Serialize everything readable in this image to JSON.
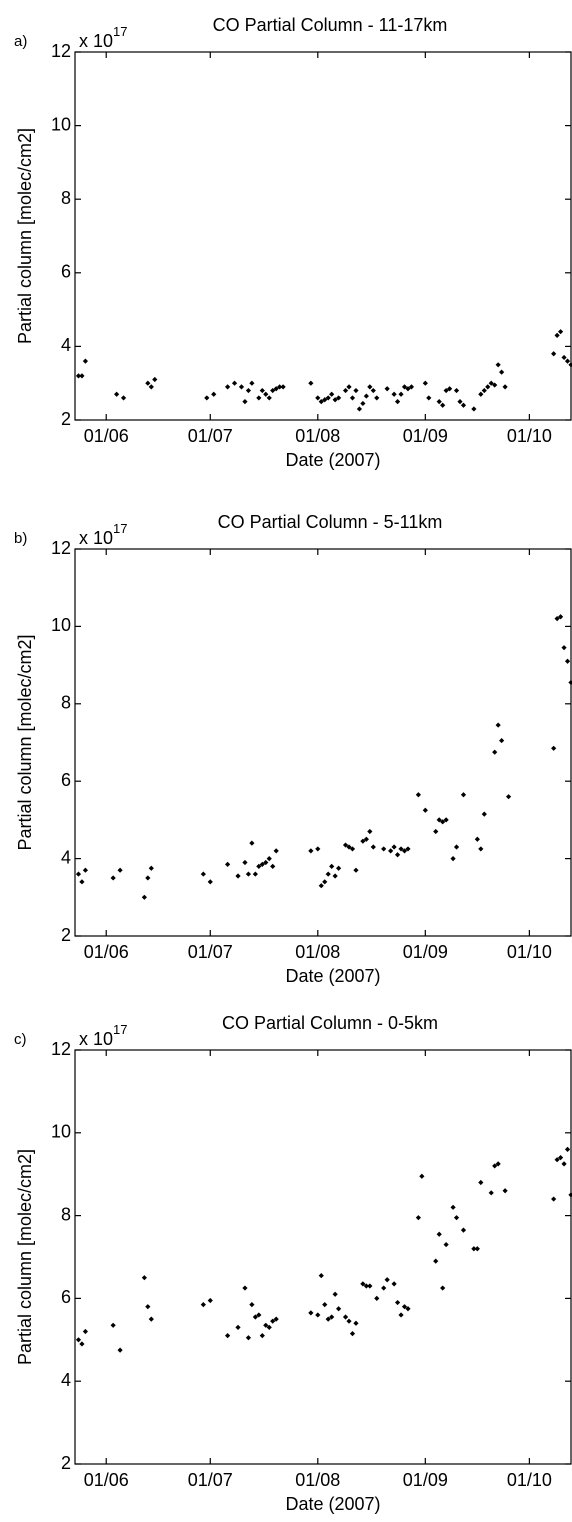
{
  "chart_data": [
    {
      "type": "scatter",
      "panel_label": "a)",
      "title": "CO Partial Column - 11-17km",
      "xlabel": "Date (2007)",
      "ylabel": "Partial column [molec/cm2]",
      "y_multiplier": {
        "base": "x 10",
        "exponent": "17"
      },
      "color": "#000000",
      "xlim": [
        "2007-05-23",
        "2007-10-13"
      ],
      "xticks": [
        {
          "value": "2007-06-01",
          "label": "01/06"
        },
        {
          "value": "2007-07-01",
          "label": "01/07"
        },
        {
          "value": "2007-08-01",
          "label": "01/08"
        },
        {
          "value": "2007-09-01",
          "label": "01/09"
        },
        {
          "value": "2007-10-01",
          "label": "01/10"
        }
      ],
      "ylim": [
        2,
        12
      ],
      "yticks": [
        2,
        4,
        6,
        8,
        10,
        12
      ],
      "x": [
        "2007-05-24",
        "2007-05-25",
        "2007-05-26",
        "2007-06-04",
        "2007-06-06",
        "2007-06-13",
        "2007-06-14",
        "2007-06-15",
        "2007-06-30",
        "2007-07-02",
        "2007-07-06",
        "2007-07-08",
        "2007-07-10",
        "2007-07-11",
        "2007-07-12",
        "2007-07-13",
        "2007-07-15",
        "2007-07-16",
        "2007-07-17",
        "2007-07-18",
        "2007-07-19",
        "2007-07-20",
        "2007-07-21",
        "2007-07-22",
        "2007-07-30",
        "2007-08-01",
        "2007-08-02",
        "2007-08-03",
        "2007-08-04",
        "2007-08-05",
        "2007-08-06",
        "2007-08-07",
        "2007-08-09",
        "2007-08-10",
        "2007-08-11",
        "2007-08-12",
        "2007-08-13",
        "2007-08-14",
        "2007-08-15",
        "2007-08-16",
        "2007-08-17",
        "2007-08-18",
        "2007-08-21",
        "2007-08-23",
        "2007-08-24",
        "2007-08-25",
        "2007-08-26",
        "2007-08-27",
        "2007-08-28",
        "2007-09-01",
        "2007-09-02",
        "2007-09-05",
        "2007-09-06",
        "2007-09-07",
        "2007-09-08",
        "2007-09-10",
        "2007-09-11",
        "2007-09-12",
        "2007-09-15",
        "2007-09-17",
        "2007-09-18",
        "2007-09-19",
        "2007-09-20",
        "2007-09-21",
        "2007-09-22",
        "2007-09-23",
        "2007-09-24",
        "2007-10-08",
        "2007-10-09",
        "2007-10-10",
        "2007-10-11",
        "2007-10-12",
        "2007-10-13"
      ],
      "values": [
        3.2,
        3.2,
        3.6,
        2.7,
        2.6,
        3.0,
        2.9,
        3.1,
        2.6,
        2.7,
        2.9,
        3.0,
        2.9,
        2.5,
        2.8,
        3.0,
        2.6,
        2.8,
        2.7,
        2.6,
        2.8,
        2.85,
        2.9,
        2.9,
        3.0,
        2.6,
        2.5,
        2.55,
        2.6,
        2.7,
        2.55,
        2.6,
        2.8,
        2.9,
        2.6,
        2.8,
        2.3,
        2.45,
        2.65,
        2.9,
        2.8,
        2.6,
        2.85,
        2.7,
        2.5,
        2.7,
        2.9,
        2.85,
        2.9,
        3.0,
        2.6,
        2.5,
        2.4,
        2.8,
        2.85,
        2.8,
        2.5,
        2.4,
        2.3,
        2.7,
        2.8,
        2.9,
        3.0,
        2.95,
        3.5,
        3.3,
        2.9,
        3.8,
        4.3,
        4.4,
        3.7,
        3.6,
        3.5
      ]
    },
    {
      "type": "scatter",
      "panel_label": "b)",
      "title": "CO Partial Column - 5-11km",
      "xlabel": "Date (2007)",
      "ylabel": "Partial column [molec/cm2]",
      "y_multiplier": {
        "base": "x 10",
        "exponent": "17"
      },
      "color": "#000000",
      "xlim": [
        "2007-05-23",
        "2007-10-13"
      ],
      "xticks": [
        {
          "value": "2007-06-01",
          "label": "01/06"
        },
        {
          "value": "2007-07-01",
          "label": "01/07"
        },
        {
          "value": "2007-08-01",
          "label": "01/08"
        },
        {
          "value": "2007-09-01",
          "label": "01/09"
        },
        {
          "value": "2007-10-01",
          "label": "01/10"
        }
      ],
      "ylim": [
        2,
        12
      ],
      "yticks": [
        2,
        4,
        6,
        8,
        10,
        12
      ],
      "x": [
        "2007-05-24",
        "2007-05-25",
        "2007-05-26",
        "2007-06-03",
        "2007-06-05",
        "2007-06-12",
        "2007-06-13",
        "2007-06-14",
        "2007-06-29",
        "2007-07-01",
        "2007-07-06",
        "2007-07-09",
        "2007-07-11",
        "2007-07-12",
        "2007-07-13",
        "2007-07-14",
        "2007-07-15",
        "2007-07-16",
        "2007-07-17",
        "2007-07-18",
        "2007-07-19",
        "2007-07-20",
        "2007-07-30",
        "2007-08-01",
        "2007-08-02",
        "2007-08-03",
        "2007-08-04",
        "2007-08-05",
        "2007-08-06",
        "2007-08-07",
        "2007-08-09",
        "2007-08-10",
        "2007-08-11",
        "2007-08-12",
        "2007-08-14",
        "2007-08-15",
        "2007-08-16",
        "2007-08-17",
        "2007-08-20",
        "2007-08-22",
        "2007-08-23",
        "2007-08-24",
        "2007-08-25",
        "2007-08-26",
        "2007-08-27",
        "2007-08-30",
        "2007-09-01",
        "2007-09-04",
        "2007-09-05",
        "2007-09-06",
        "2007-09-07",
        "2007-09-09",
        "2007-09-10",
        "2007-09-12",
        "2007-09-16",
        "2007-09-17",
        "2007-09-18",
        "2007-09-21",
        "2007-09-22",
        "2007-09-23",
        "2007-09-25",
        "2007-10-08",
        "2007-10-09",
        "2007-10-10",
        "2007-10-11",
        "2007-10-12",
        "2007-10-13"
      ],
      "values": [
        3.6,
        3.4,
        3.7,
        3.5,
        3.7,
        3.0,
        3.5,
        3.75,
        3.6,
        3.4,
        3.85,
        3.55,
        3.9,
        3.6,
        4.4,
        3.6,
        3.8,
        3.85,
        3.9,
        4.0,
        3.8,
        4.2,
        4.2,
        4.25,
        3.3,
        3.4,
        3.6,
        3.8,
        3.55,
        3.75,
        4.35,
        4.3,
        4.25,
        3.7,
        4.45,
        4.5,
        4.7,
        4.3,
        4.25,
        4.2,
        4.3,
        4.1,
        4.25,
        4.2,
        4.25,
        5.65,
        5.25,
        4.7,
        5.0,
        4.95,
        5.0,
        4.0,
        4.3,
        5.65,
        4.5,
        4.25,
        5.15,
        6.75,
        7.45,
        7.05,
        5.6,
        6.85,
        10.2,
        10.25,
        9.45,
        9.1,
        8.55
      ]
    },
    {
      "type": "scatter",
      "panel_label": "c)",
      "title": "CO Partial Column - 0-5km",
      "xlabel": "Date (2007)",
      "ylabel": "Partial column [molec/cm2]",
      "y_multiplier": {
        "base": "x 10",
        "exponent": "17"
      },
      "color": "#000000",
      "xlim": [
        "2007-05-23",
        "2007-10-13"
      ],
      "xticks": [
        {
          "value": "2007-06-01",
          "label": "01/06"
        },
        {
          "value": "2007-07-01",
          "label": "01/07"
        },
        {
          "value": "2007-08-01",
          "label": "01/08"
        },
        {
          "value": "2007-09-01",
          "label": "01/09"
        },
        {
          "value": "2007-10-01",
          "label": "01/10"
        }
      ],
      "ylim": [
        2,
        12
      ],
      "yticks": [
        2,
        4,
        6,
        8,
        10,
        12
      ],
      "x": [
        "2007-05-24",
        "2007-05-25",
        "2007-05-26",
        "2007-06-03",
        "2007-06-05",
        "2007-06-12",
        "2007-06-13",
        "2007-06-14",
        "2007-06-29",
        "2007-07-01",
        "2007-07-06",
        "2007-07-09",
        "2007-07-11",
        "2007-07-12",
        "2007-07-13",
        "2007-07-14",
        "2007-07-15",
        "2007-07-16",
        "2007-07-17",
        "2007-07-18",
        "2007-07-19",
        "2007-07-20",
        "2007-07-30",
        "2007-08-01",
        "2007-08-02",
        "2007-08-03",
        "2007-08-04",
        "2007-08-05",
        "2007-08-06",
        "2007-08-07",
        "2007-08-09",
        "2007-08-10",
        "2007-08-11",
        "2007-08-12",
        "2007-08-14",
        "2007-08-15",
        "2007-08-16",
        "2007-08-18",
        "2007-08-20",
        "2007-08-21",
        "2007-08-23",
        "2007-08-24",
        "2007-08-25",
        "2007-08-26",
        "2007-08-27",
        "2007-08-30",
        "2007-08-31",
        "2007-09-04",
        "2007-09-05",
        "2007-09-06",
        "2007-09-07",
        "2007-09-09",
        "2007-09-10",
        "2007-09-12",
        "2007-09-15",
        "2007-09-16",
        "2007-09-17",
        "2007-09-20",
        "2007-09-21",
        "2007-09-22",
        "2007-09-24",
        "2007-10-08",
        "2007-10-09",
        "2007-10-10",
        "2007-10-11",
        "2007-10-12",
        "2007-10-13"
      ],
      "values": [
        5.0,
        4.9,
        5.2,
        5.35,
        4.75,
        6.5,
        5.8,
        5.5,
        5.85,
        5.95,
        5.1,
        5.3,
        6.25,
        5.05,
        5.85,
        5.55,
        5.6,
        5.1,
        5.35,
        5.3,
        5.45,
        5.5,
        5.65,
        5.6,
        6.55,
        5.85,
        5.5,
        5.55,
        6.1,
        5.75,
        5.55,
        5.45,
        5.15,
        5.4,
        6.35,
        6.3,
        6.3,
        6.0,
        6.25,
        6.45,
        6.35,
        5.9,
        5.6,
        5.8,
        5.75,
        7.95,
        8.95,
        6.9,
        7.55,
        6.25,
        7.3,
        8.2,
        7.95,
        7.65,
        7.2,
        7.2,
        8.8,
        8.55,
        9.2,
        9.25,
        8.6,
        8.4,
        9.35,
        9.4,
        9.25,
        9.6,
        8.5
      ]
    }
  ]
}
